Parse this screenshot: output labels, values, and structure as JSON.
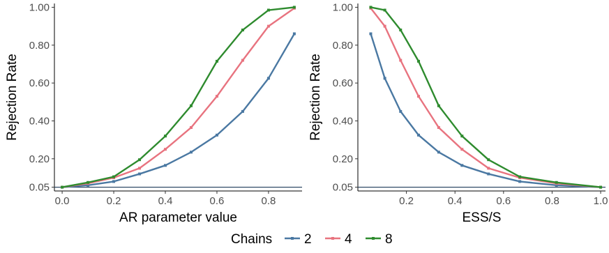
{
  "legend": {
    "title": "Chains",
    "items": [
      {
        "label": "2",
        "color": "#4a78a2"
      },
      {
        "label": "4",
        "color": "#e8737f"
      },
      {
        "label": "8",
        "color": "#2e8b2e"
      }
    ]
  },
  "chart_data": [
    {
      "type": "line",
      "xlabel": "AR parameter value",
      "ylabel": "Rejection Rate",
      "xlim": [
        -0.03,
        0.93
      ],
      "ylim": [
        0.03,
        1.02
      ],
      "xticks": [
        0.0,
        0.2,
        0.4,
        0.6,
        0.8
      ],
      "xtick_labels": [
        "0.0",
        "0.2",
        "0.4",
        "0.6",
        "0.8"
      ],
      "yticks": [
        0.05,
        0.2,
        0.4,
        0.6,
        0.8,
        1.0
      ],
      "ytick_labels": [
        "0.05",
        "0.20",
        "0.40",
        "0.60",
        "0.80",
        "1.00"
      ],
      "reference_line": 0.05,
      "grid": false,
      "series": [
        {
          "name": "2",
          "color": "#4a78a2",
          "x": [
            0.0,
            0.1,
            0.2,
            0.3,
            0.4,
            0.5,
            0.6,
            0.7,
            0.8,
            0.9
          ],
          "y": [
            0.05,
            0.06,
            0.08,
            0.12,
            0.165,
            0.235,
            0.325,
            0.45,
            0.625,
            0.86
          ]
        },
        {
          "name": "4",
          "color": "#e8737f",
          "x": [
            0.0,
            0.1,
            0.2,
            0.3,
            0.4,
            0.5,
            0.6,
            0.7,
            0.8,
            0.9
          ],
          "y": [
            0.05,
            0.07,
            0.1,
            0.15,
            0.25,
            0.365,
            0.53,
            0.72,
            0.9,
            0.995
          ]
        },
        {
          "name": "8",
          "color": "#2e8b2e",
          "x": [
            0.0,
            0.1,
            0.2,
            0.3,
            0.4,
            0.5,
            0.6,
            0.7,
            0.8,
            0.9
          ],
          "y": [
            0.05,
            0.075,
            0.105,
            0.195,
            0.32,
            0.48,
            0.715,
            0.88,
            0.985,
            1.0
          ]
        }
      ]
    },
    {
      "type": "line",
      "xlabel": "ESS/S",
      "ylabel": "Rejection Rate",
      "xlim": [
        0.0,
        1.02
      ],
      "ylim": [
        0.03,
        1.02
      ],
      "xticks": [
        0.2,
        0.4,
        0.6,
        0.8,
        1.0
      ],
      "xtick_labels": [
        "0.2",
        "0.4",
        "0.6",
        "0.8",
        "1.0"
      ],
      "yticks": [
        0.05,
        0.2,
        0.4,
        0.6,
        0.8,
        1.0
      ],
      "ytick_labels": [
        "0.05",
        "0.20",
        "0.40",
        "0.60",
        "0.80",
        "1.00"
      ],
      "reference_line": 0.05,
      "grid": false,
      "series": [
        {
          "name": "2",
          "color": "#4a78a2",
          "x": [
            0.053,
            0.111,
            0.176,
            0.25,
            0.333,
            0.429,
            0.538,
            0.667,
            0.818,
            1.0
          ],
          "y": [
            0.86,
            0.625,
            0.45,
            0.325,
            0.235,
            0.165,
            0.12,
            0.08,
            0.06,
            0.05
          ]
        },
        {
          "name": "4",
          "color": "#e8737f",
          "x": [
            0.053,
            0.111,
            0.176,
            0.25,
            0.333,
            0.429,
            0.538,
            0.667,
            0.818,
            1.0
          ],
          "y": [
            0.995,
            0.9,
            0.72,
            0.53,
            0.365,
            0.25,
            0.15,
            0.1,
            0.07,
            0.05
          ]
        },
        {
          "name": "8",
          "color": "#2e8b2e",
          "x": [
            0.053,
            0.111,
            0.176,
            0.25,
            0.333,
            0.429,
            0.538,
            0.667,
            0.818,
            1.0
          ],
          "y": [
            1.0,
            0.985,
            0.88,
            0.715,
            0.48,
            0.32,
            0.195,
            0.105,
            0.075,
            0.05
          ]
        }
      ]
    }
  ]
}
